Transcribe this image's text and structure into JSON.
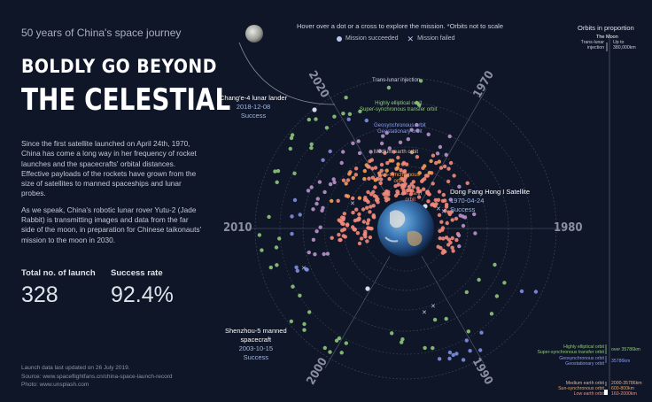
{
  "left": {
    "eyebrow": "50 years of China's space journey",
    "headline_line1": "BOLDLY GO BEYOND",
    "headline_line2": "THE CELESTIAL",
    "paragraph1": "Since the first satellite launched on April 24th, 1970, China has come a long way in her frequency of rocket launches and the spacecrafts' orbital distances. Effective payloads of the rockets have grown from the size of satellites to manned spaceships and lunar probes.",
    "paragraph2": "As we speak, China's robotic lunar rover Yutu-2 (Jade Rabbit) is transmitting images and data from the far side of the moon, in preparation for Chinese taikonauts' mission to the moon in 2030.",
    "stat_total_label": "Total no. of launch",
    "stat_total_value": "328",
    "stat_rate_label": "Success rate",
    "stat_rate_value": "92.4%",
    "footnote1": "Launch data last updated on 26 July 2019.",
    "footnote2": "Source: www.spaceflightfans.cn/china-space-launch-record",
    "footnote3": "Photo: www.unsplash.com"
  },
  "chart": {
    "instruction": "Hover over a dot or a cross to explore the mission. *Orbits not to scale",
    "legend_success": "Mission succeeded",
    "legend_failed": "Mission failed",
    "years": [
      "1970",
      "1980",
      "1990",
      "2000",
      "2010",
      "2020"
    ],
    "orbits": {
      "trans_lunar": "Trans-lunar injection",
      "heo_1": "Highly elliptical orbit",
      "heo_2": "Super-synchronous transfer orbit",
      "geo_1": "Geosynchronous orbit",
      "geo_2": "Geostationary orbit",
      "meo": "Medium earth orbit",
      "sso_1": "Sun-synchronous",
      "sso_2": "orbit",
      "leo_1": "Low earth",
      "leo_2": "orbit"
    },
    "annotations": {
      "change4_title": "Chang'e-4  lunar lander",
      "change4_date": "2018-12-08",
      "change4_status": "Success",
      "dfh_title": "Dong Fang Hong I Satellite",
      "dfh_date": "1970-04-24",
      "dfh_status": "Success",
      "sz5_title1": "Shenzhou-5 manned",
      "sz5_title2": "spacecraft",
      "sz5_date": "2003-10-15",
      "sz5_status": "Success"
    },
    "colors": {
      "background": "#0f1628",
      "leo": "#f48a7a",
      "sso": "#f3a24e",
      "meo": "#d7b3a0",
      "geo": "#7f8fe0",
      "heo": "#8fc77a",
      "lunar": "#c9cdd6",
      "purple": "#b993c9"
    }
  },
  "right": {
    "title": "Orbits in proportion",
    "moon": "The Moon",
    "trans_lunar_label1": "Trans-lunar",
    "trans_lunar_label2": "injection",
    "trans_lunar_value1": "Up to",
    "trans_lunar_value2": "380,000km",
    "heo_label1": "Highly elliptical orbit",
    "heo_label2": "Super-synchronous transfer orbit",
    "heo_value": "over 35786km",
    "geo_label1": "Geosynchronous orbit",
    "geo_label2": "Geostationary orbit",
    "geo_value": "35786km",
    "meo_label": "Medium earth orbit",
    "meo_value": "2000-35786km",
    "sso_label": "Sun-synchronous orbit",
    "sso_value": "600-800km",
    "leo_label": "Low earth orbit",
    "leo_value": "160-2000km"
  }
}
